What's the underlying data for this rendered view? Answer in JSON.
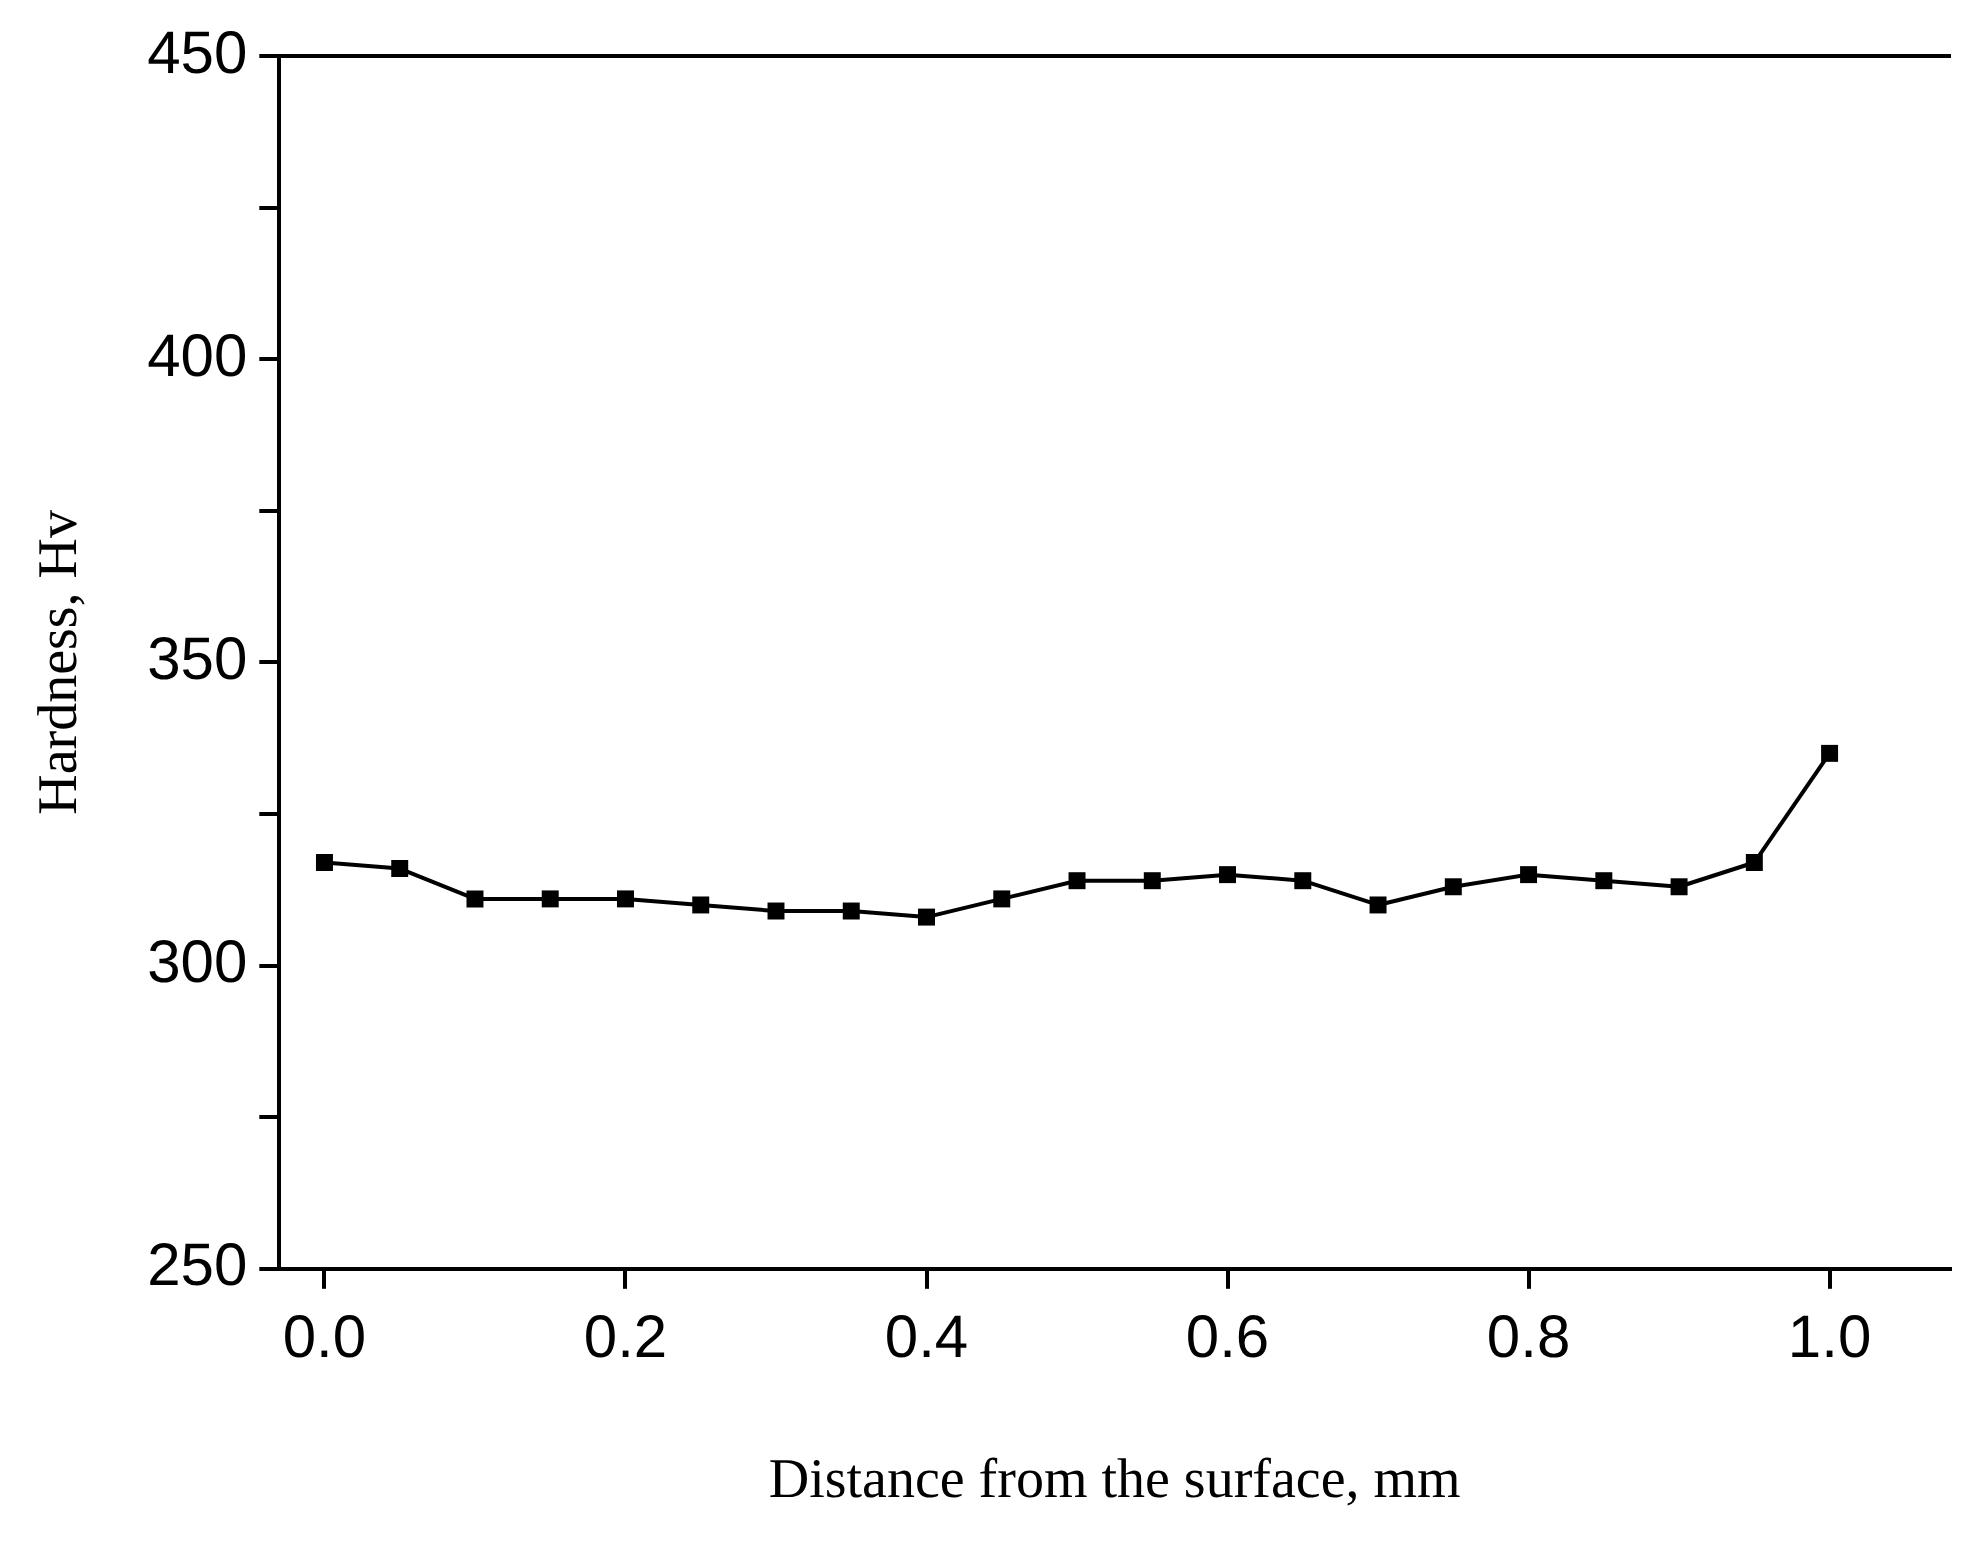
{
  "chart_data": {
    "type": "line",
    "xlabel": "Distance from the surface, mm",
    "ylabel": "Hardness, Hv",
    "x": [
      0,
      0.05,
      0.1,
      0.15,
      0.2,
      0.25,
      0.3,
      0.35,
      0.4,
      0.45,
      0.5,
      0.55,
      0.6,
      0.65,
      0.7,
      0.75,
      0.8,
      0.85,
      0.9,
      0.95,
      1.0
    ],
    "series": [
      {
        "color": "#000000",
        "values": [
          317,
          316,
          311,
          311,
          311,
          310,
          309,
          309,
          308,
          311,
          314,
          314,
          315,
          314,
          310,
          313,
          315,
          314,
          313,
          317,
          335
        ]
      }
    ],
    "xlim": [
      -0.03,
      1.08
    ],
    "xticks": [
      {
        "value": 0,
        "label": "0.0"
      },
      0.2,
      0.4,
      0.6,
      0.8,
      {
        "value": 1,
        "label": "1.0"
      }
    ],
    "ylim": [
      250,
      450
    ],
    "yticks": [
      250,
      {
        "value": 275,
        "label": null
      },
      300,
      {
        "value": 325,
        "label": null
      },
      350,
      {
        "value": 375,
        "label": null
      },
      400,
      {
        "value": 425,
        "label": null
      },
      450
    ],
    "grid": false,
    "legend": false,
    "marker": "square",
    "line_style": "solid"
  }
}
